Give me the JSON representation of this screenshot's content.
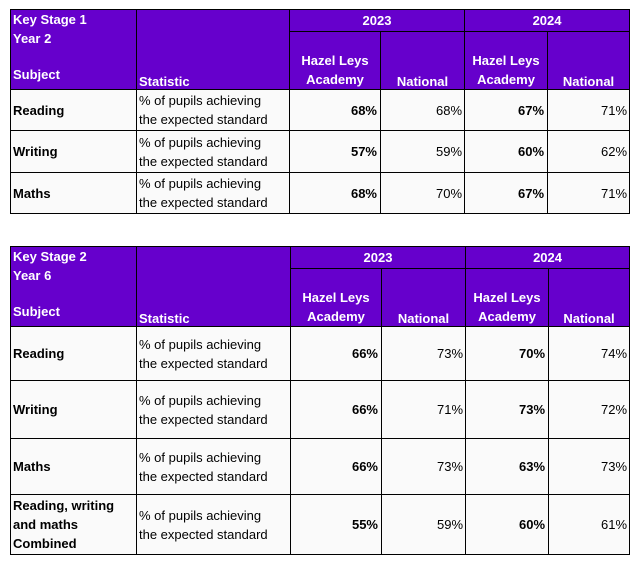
{
  "ks1": {
    "title_line1": "Key Stage 1",
    "title_line2": "Year 2",
    "col_subject": "Subject",
    "col_statistic": "Statistic",
    "year_a": "2023",
    "year_b": "2024",
    "school_line1": "Hazel Leys",
    "school_line2": "Academy",
    "national": "National",
    "rows": [
      {
        "subject": "Reading",
        "stat_line1": "% of pupils achieving",
        "stat_line2": "the expected standard",
        "s2023": "68%",
        "n2023": "68%",
        "s2024": "67%",
        "n2024": "71%"
      },
      {
        "subject": "Writing",
        "stat_line1": "% of pupils achieving",
        "stat_line2": "the expected standard",
        "s2023": "57%",
        "n2023": "59%",
        "s2024": "60%",
        "n2024": "62%"
      },
      {
        "subject": "Maths",
        "stat_line1": "% of pupils achieving",
        "stat_line2": "the expected standard",
        "s2023": "68%",
        "n2023": "70%",
        "s2024": "67%",
        "n2024": "71%"
      }
    ]
  },
  "ks2": {
    "title_line1": "Key Stage 2",
    "title_line2": "Year 6",
    "col_subject": "Subject",
    "col_statistic": "Statistic",
    "year_a": "2023",
    "year_b": "2024",
    "school_line1": "Hazel Leys",
    "school_line2": "Academy",
    "national": "National",
    "rows": [
      {
        "subject_line1": "Reading",
        "subject_line2": "",
        "subject_line3": "",
        "stat_line1": "% of pupils achieving",
        "stat_line2": "the expected standard",
        "s2023": "66%",
        "n2023": "73%",
        "s2024": "70%",
        "n2024": "74%"
      },
      {
        "subject_line1": "Writing",
        "subject_line2": "",
        "subject_line3": "",
        "stat_line1": "% of pupils achieving",
        "stat_line2": "the expected standard",
        "s2023": "66%",
        "n2023": "71%",
        "s2024": "73%",
        "n2024": "72%"
      },
      {
        "subject_line1": "Maths",
        "subject_line2": "",
        "subject_line3": "",
        "stat_line1": "% of pupils achieving",
        "stat_line2": "the expected standard",
        "s2023": "66%",
        "n2023": "73%",
        "s2024": "63%",
        "n2024": "73%"
      },
      {
        "subject_line1": "Reading, writing",
        "subject_line2": "and maths",
        "subject_line3": "Combined",
        "stat_line1": "% of pupils achieving",
        "stat_line2": "the expected standard",
        "s2023": "55%",
        "n2023": "59%",
        "s2024": "60%",
        "n2024": "61%"
      }
    ]
  },
  "colors": {
    "header_bg": "#6600cc",
    "header_text": "#ffffff",
    "cell_bg": "#fafafa",
    "border": "#000000"
  }
}
